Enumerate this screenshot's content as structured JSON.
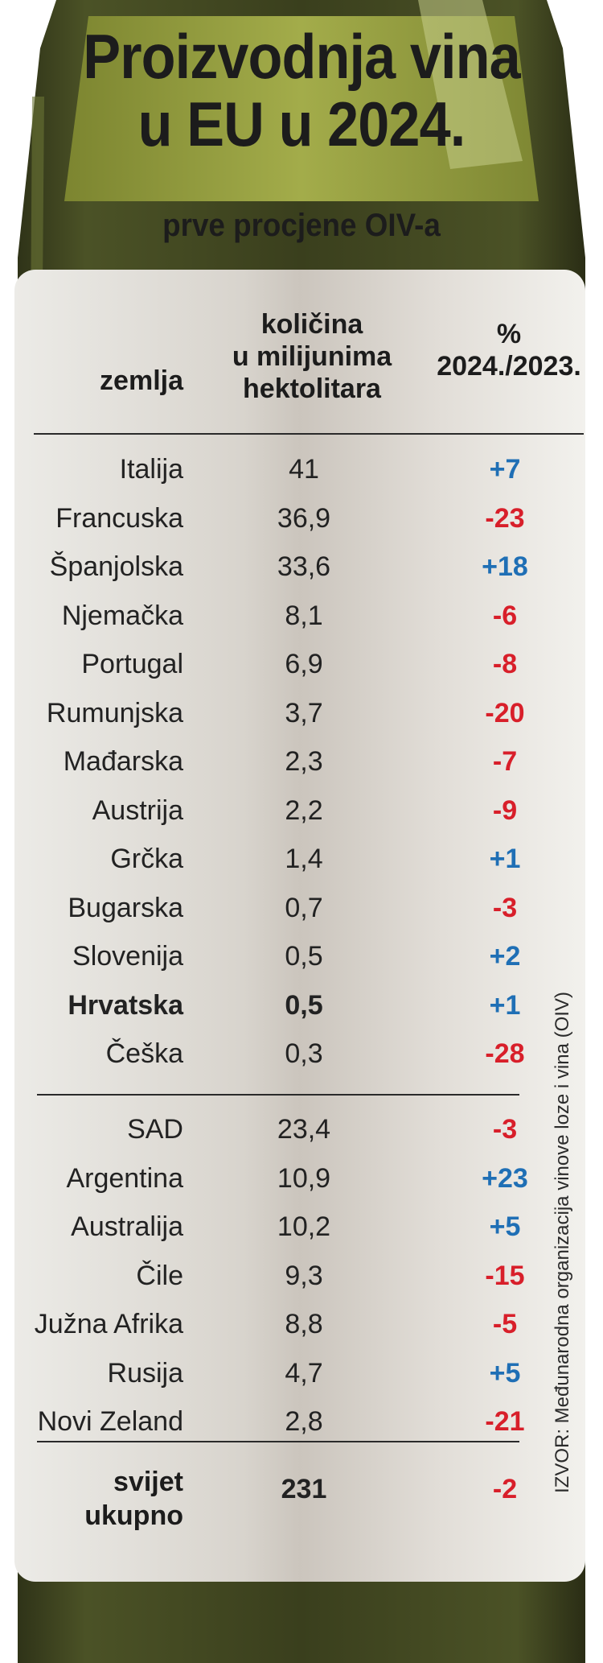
{
  "title_line1": "Proizvodnja vina",
  "title_line2": "u EU u 2024.",
  "subtitle": "prve procjene OIV-a",
  "source": "IZVOR: Međunarodna organizacija vinove loze i vina (OIV)",
  "colors": {
    "positive": "#1f6fb5",
    "negative": "#d81f2a",
    "bottle": "#3e4320",
    "label": "#8f9a3a"
  },
  "chart_data": {
    "type": "table",
    "columns": [
      "zemlja",
      "količina u milijunima hektolitara",
      "% 2024./2023."
    ],
    "header": {
      "country": "zemlja",
      "quantity_lines": [
        "količina",
        "u milijunima",
        "hektolitara"
      ],
      "pct_lines": [
        "%",
        "2024./2023."
      ]
    },
    "eu_rows": [
      {
        "country": "Italija",
        "value": "41",
        "change": "+7"
      },
      {
        "country": "Francuska",
        "value": "36,9",
        "change": "-23"
      },
      {
        "country": "Španjolska",
        "value": "33,6",
        "change": "+18"
      },
      {
        "country": "Njemačka",
        "value": "8,1",
        "change": "-6"
      },
      {
        "country": "Portugal",
        "value": "6,9",
        "change": "-8"
      },
      {
        "country": "Rumunjska",
        "value": "3,7",
        "change": "-20"
      },
      {
        "country": "Mađarska",
        "value": "2,3",
        "change": "-7"
      },
      {
        "country": "Austrija",
        "value": "2,2",
        "change": "-9"
      },
      {
        "country": "Grčka",
        "value": "1,4",
        "change": "+1"
      },
      {
        "country": "Bugarska",
        "value": "0,7",
        "change": "-3"
      },
      {
        "country": "Slovenija",
        "value": "0,5",
        "change": "+2"
      },
      {
        "country": "Hrvatska",
        "value": "0,5",
        "change": "+1",
        "highlight": true
      },
      {
        "country": "Češka",
        "value": "0,3",
        "change": "-28"
      }
    ],
    "world_rows": [
      {
        "country": "SAD",
        "value": "23,4",
        "change": "-3"
      },
      {
        "country": "Argentina",
        "value": "10,9",
        "change": "+23"
      },
      {
        "country": "Australija",
        "value": "10,2",
        "change": "+5"
      },
      {
        "country": "Čile",
        "value": "9,3",
        "change": "-15"
      },
      {
        "country": "Južna Afrika",
        "value": "8,8",
        "change": "-5"
      },
      {
        "country": "Rusija",
        "value": "4,7",
        "change": "+5"
      },
      {
        "country": "Novi Zeland",
        "value": "2,8",
        "change": "-21"
      }
    ],
    "total": {
      "label_lines": [
        "svijet",
        "ukupno"
      ],
      "value": "231",
      "change": "-2"
    }
  }
}
